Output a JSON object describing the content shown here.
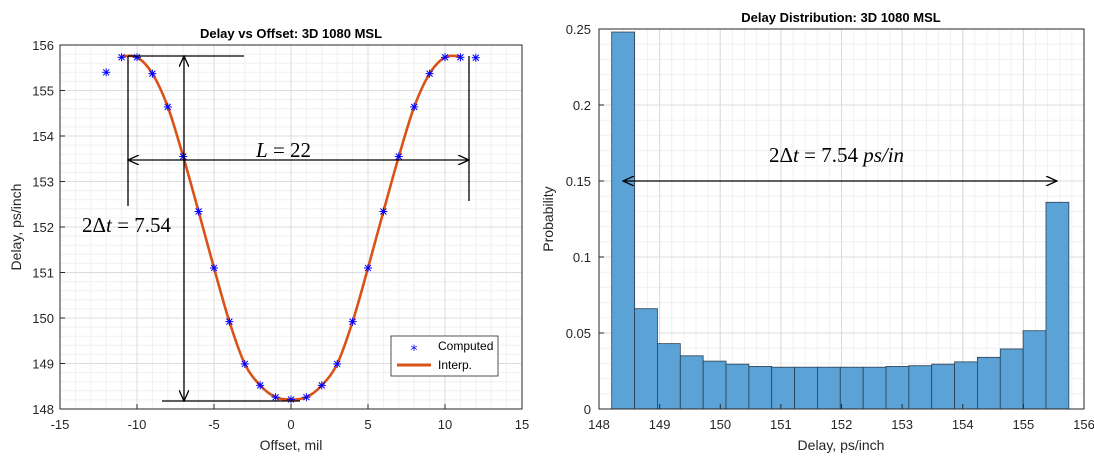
{
  "chart_data": [
    {
      "type": "line",
      "title": "Delay vs Offset: 3D 1080 MSL",
      "xlabel": "Offset, mil",
      "ylabel": "Delay, ps/inch",
      "xlim": [
        -15,
        15
      ],
      "ylim": [
        148,
        156
      ],
      "xticks": [
        "-15",
        "-10",
        "-5",
        "0",
        "5",
        "10",
        "15"
      ],
      "yticks": [
        "148",
        "149",
        "150",
        "151",
        "152",
        "153",
        "154",
        "155",
        "156"
      ],
      "grid": true,
      "minor_grid": true,
      "legend_location": "bottom-right",
      "series": [
        {
          "name": "Computed",
          "marker": "*",
          "color": "#0000ff",
          "x": [
            -12,
            -11,
            -10,
            -9,
            -8,
            -7,
            -6,
            -5,
            -4,
            -3,
            -2,
            -1,
            0,
            1,
            2,
            3,
            4,
            5,
            6,
            7,
            8,
            9,
            10,
            11,
            12
          ],
          "y": [
            155.4,
            155.73,
            155.73,
            155.37,
            154.64,
            153.55,
            152.34,
            151.1,
            149.92,
            148.99,
            148.52,
            148.26,
            148.21,
            148.26,
            148.52,
            148.99,
            149.92,
            151.1,
            152.34,
            153.55,
            154.64,
            155.37,
            155.73,
            155.73,
            155.72
          ]
        },
        {
          "name": "Interp.",
          "color": "#d95319",
          "x": [
            -11,
            -10,
            -9,
            -8,
            -7,
            -6,
            -5,
            -4,
            -3,
            -2,
            -1,
            0,
            1,
            2,
            3,
            4,
            5,
            6,
            7,
            8,
            9,
            10,
            11
          ],
          "y": [
            155.75,
            155.73,
            155.37,
            154.64,
            153.55,
            152.34,
            151.1,
            149.92,
            148.99,
            148.52,
            148.26,
            148.21,
            148.26,
            148.52,
            148.99,
            149.92,
            151.1,
            152.34,
            153.55,
            154.64,
            155.37,
            155.73,
            155.75
          ]
        }
      ],
      "annotations": [
        {
          "lhs": "L",
          "eq": " = 22"
        },
        {
          "prefix": "2",
          "delta": "Δ",
          "var": "t",
          "eq": " = 7.54"
        }
      ]
    },
    {
      "type": "bar",
      "title": "Delay Distribution: 3D 1080 MSL",
      "xlabel": "Delay, ps/inch",
      "ylabel": "Probability",
      "xlim": [
        148,
        156
      ],
      "ylim": [
        0,
        0.25
      ],
      "xticks": [
        "148",
        "149",
        "150",
        "151",
        "152",
        "153",
        "154",
        "155",
        "156"
      ],
      "yticks": [
        "0",
        "0.05",
        "0.1",
        "0.15",
        "0.2",
        "0.25"
      ],
      "grid": true,
      "minor_grid": true,
      "color": "#5ba3d6",
      "bin_start": 148.21,
      "bin_width": 0.377,
      "values": [
        0.248,
        0.066,
        0.043,
        0.035,
        0.0315,
        0.0295,
        0.028,
        0.0275,
        0.0275,
        0.0275,
        0.0275,
        0.0275,
        0.028,
        0.0285,
        0.0295,
        0.031,
        0.034,
        0.0395,
        0.0515,
        0.136
      ],
      "annotation": {
        "prefix": "2",
        "delta": "Δ",
        "var": "t",
        "eq": " = 7.54 ",
        "unit": "ps/in"
      }
    }
  ]
}
